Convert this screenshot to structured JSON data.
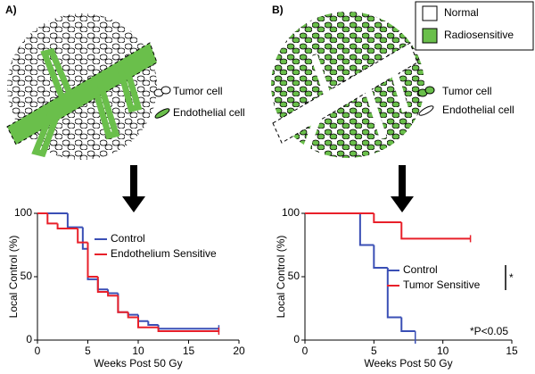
{
  "key": {
    "items": [
      {
        "label": "Normal",
        "color": "#ffffff"
      },
      {
        "label": "Radiosensitive",
        "color": "#6abf4b"
      }
    ]
  },
  "chart_data": [
    {
      "type": "step",
      "panel": "A)",
      "illustration_labels": [
        "Tumor cell",
        "Endothelial cell"
      ],
      "xlabel": "Weeks Post 50 Gy",
      "ylabel": "Local Control (%)",
      "xlim": [
        0,
        20
      ],
      "xticks": [
        0,
        5,
        10,
        15,
        20
      ],
      "ylim": [
        0,
        100
      ],
      "yticks": [
        0,
        50,
        100
      ],
      "series": [
        {
          "name": "Control",
          "color": "#3a4fb5",
          "x": [
            0,
            3,
            4.5,
            5,
            6,
            7,
            8,
            9,
            10,
            11,
            12,
            18
          ],
          "values": [
            100,
            89,
            72,
            48,
            40,
            37,
            22,
            20,
            15,
            12,
            9,
            9
          ]
        },
        {
          "name": "Endothelium Sensitive",
          "color": "#e8202a",
          "x": [
            0,
            1,
            2,
            4,
            5,
            6,
            7,
            8,
            9,
            10,
            12,
            18
          ],
          "values": [
            100,
            92,
            88,
            77,
            50,
            38,
            35,
            22,
            18,
            10,
            7,
            7
          ]
        }
      ]
    },
    {
      "type": "step",
      "panel": "B)",
      "illustration_labels": [
        "Tumor cell",
        "Endothelial cell"
      ],
      "xlabel": "Weeks Post 50 Gy",
      "ylabel": "Local Control (%)",
      "xlim": [
        0,
        15
      ],
      "xticks": [
        0,
        5,
        10,
        15
      ],
      "ylim": [
        0,
        100
      ],
      "yticks": [
        0,
        50,
        100
      ],
      "series": [
        {
          "name": "Control",
          "color": "#3a4fb5",
          "x": [
            0,
            4,
            5,
            6,
            7,
            8
          ],
          "values": [
            100,
            75,
            57,
            18,
            7,
            0
          ]
        },
        {
          "name": "Tumor Sensitive",
          "color": "#e8202a",
          "x": [
            0,
            5,
            7,
            12
          ],
          "values": [
            100,
            93,
            80,
            80
          ]
        }
      ],
      "annotations": [
        "*",
        "*P<0.05"
      ]
    }
  ]
}
